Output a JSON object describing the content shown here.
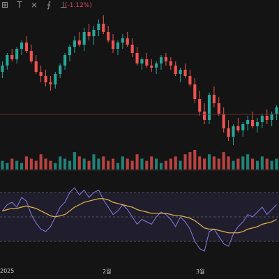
{
  "toolbar": {
    "tools": [
      {
        "name": "measure-tool",
        "glyph": "⊞"
      },
      {
        "name": "text-tool",
        "glyph": "T"
      },
      {
        "name": "crosshair-tool",
        "glyph": "⨯"
      },
      {
        "name": "indicator-tool",
        "glyph": "⨍"
      },
      {
        "name": "settings-tool",
        "glyph": "⊥"
      }
    ],
    "change_text": "(-1.12%)"
  },
  "colors": {
    "up": "#26a69a",
    "down": "#ef5350",
    "rsi": "#8c7ae6",
    "signal": "#e8b84a",
    "band": "#2a2440"
  },
  "time_axis": {
    "labels": [
      "2025",
      "2월",
      "3월"
    ]
  },
  "chart_data": {
    "type": "candlestick",
    "series": [
      {
        "name": "price",
        "candles": [
          [
            95,
            100,
            92,
            98
          ],
          [
            98,
            104,
            96,
            103
          ],
          [
            103,
            106,
            100,
            101
          ],
          [
            101,
            107,
            99,
            106
          ],
          [
            106,
            110,
            103,
            109
          ],
          [
            109,
            112,
            104,
            105
          ],
          [
            105,
            108,
            99,
            100
          ],
          [
            100,
            103,
            94,
            95
          ],
          [
            95,
            98,
            90,
            93
          ],
          [
            93,
            96,
            88,
            90
          ],
          [
            90,
            93,
            86,
            89
          ],
          [
            89,
            95,
            87,
            94
          ],
          [
            94,
            99,
            92,
            98
          ],
          [
            98,
            104,
            96,
            103
          ],
          [
            103,
            108,
            100,
            107
          ],
          [
            107,
            112,
            104,
            110
          ],
          [
            110,
            114,
            107,
            108
          ],
          [
            108,
            116,
            105,
            114
          ],
          [
            114,
            118,
            110,
            112
          ],
          [
            112,
            117,
            108,
            115
          ],
          [
            115,
            120,
            112,
            118
          ],
          [
            118,
            122,
            113,
            114
          ],
          [
            114,
            117,
            109,
            110
          ],
          [
            110,
            113,
            104,
            106
          ],
          [
            106,
            110,
            103,
            109
          ],
          [
            109,
            113,
            106,
            111
          ],
          [
            111,
            114,
            107,
            108
          ],
          [
            108,
            111,
            102,
            104
          ],
          [
            104,
            107,
            98,
            99
          ],
          [
            99,
            102,
            96,
            101
          ],
          [
            101,
            104,
            97,
            98
          ],
          [
            98,
            101,
            95,
            97
          ],
          [
            97,
            100,
            94,
            99
          ],
          [
            99,
            103,
            96,
            102
          ],
          [
            102,
            104,
            98,
            100
          ],
          [
            100,
            102,
            96,
            98
          ],
          [
            98,
            100,
            93,
            94
          ],
          [
            94,
            97,
            90,
            96
          ],
          [
            96,
            99,
            92,
            93
          ],
          [
            93,
            96,
            88,
            89
          ],
          [
            89,
            92,
            80,
            82
          ],
          [
            82,
            86,
            74,
            76
          ],
          [
            76,
            80,
            70,
            72
          ],
          [
            72,
            85,
            70,
            84
          ],
          [
            84,
            88,
            78,
            80
          ],
          [
            80,
            83,
            74,
            75
          ],
          [
            75,
            78,
            66,
            68
          ],
          [
            68,
            72,
            62,
            64
          ],
          [
            64,
            70,
            60,
            69
          ],
          [
            69,
            73,
            66,
            67
          ],
          [
            67,
            71,
            64,
            70
          ],
          [
            70,
            74,
            67,
            72
          ],
          [
            72,
            76,
            68,
            69
          ],
          [
            69,
            73,
            66,
            71
          ],
          [
            71,
            75,
            68,
            74
          ],
          [
            74,
            77,
            70,
            72
          ],
          [
            72,
            76,
            69,
            75
          ],
          [
            75,
            79,
            72,
            78
          ]
        ]
      }
    ],
    "volumes": [
      4,
      3,
      5,
      4,
      3,
      6,
      5,
      4,
      7,
      5,
      4,
      3,
      6,
      5,
      4,
      8,
      6,
      5,
      4,
      7,
      5,
      6,
      4,
      5,
      3,
      6,
      5,
      4,
      7,
      5,
      4,
      6,
      5,
      3,
      4,
      5,
      6,
      4,
      7,
      8,
      9,
      6,
      5,
      7,
      6,
      5,
      8,
      6,
      4,
      5,
      6,
      7,
      5,
      4,
      6,
      5,
      4,
      5
    ],
    "rsi": [
      55,
      60,
      62,
      58,
      66,
      63,
      52,
      45,
      40,
      38,
      42,
      50,
      58,
      62,
      70,
      74,
      68,
      72,
      66,
      70,
      72,
      64,
      58,
      52,
      55,
      60,
      56,
      50,
      44,
      48,
      46,
      44,
      50,
      54,
      52,
      48,
      42,
      50,
      46,
      40,
      30,
      24,
      22,
      38,
      40,
      34,
      28,
      26,
      36,
      42,
      46,
      52,
      50,
      54,
      58,
      52,
      56,
      60
    ],
    "signal": [
      55,
      56,
      57,
      57,
      58,
      59,
      58,
      57,
      55,
      53,
      51,
      50,
      51,
      52,
      55,
      58,
      60,
      62,
      63,
      64,
      65,
      65,
      64,
      62,
      61,
      60,
      59,
      58,
      56,
      55,
      54,
      53,
      53,
      53,
      53,
      52,
      51,
      51,
      50,
      49,
      47,
      44,
      41,
      40,
      40,
      39,
      38,
      37,
      37,
      37,
      38,
      40,
      41,
      42,
      44,
      45,
      46,
      48
    ]
  }
}
